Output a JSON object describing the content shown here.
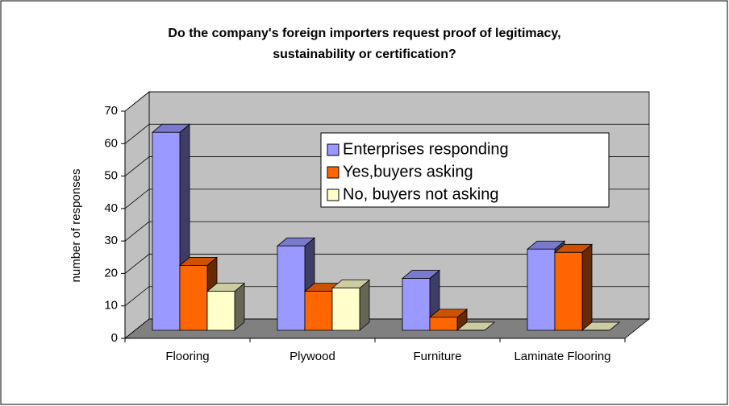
{
  "chart_data": {
    "type": "bar3d",
    "title": [
      "Do the company's foreign importers request proof of legitimacy,",
      "sustainability or certification?"
    ],
    "y_label": "number of responses",
    "categories": [
      "Flooring",
      "Plywood",
      "Furniture",
      "Laminate Flooring"
    ],
    "series": [
      {
        "name": "Enterprises responding",
        "color": "#9999ff",
        "values": [
          61,
          26,
          16,
          25
        ]
      },
      {
        "name": "Yes,buyers asking",
        "color": "#ff6600",
        "values": [
          20,
          12,
          4,
          24
        ]
      },
      {
        "name": "No, buyers not asking",
        "color": "#ffffcc",
        "values": [
          12,
          13,
          0,
          0
        ]
      }
    ],
    "ylim": [
      0,
      70
    ],
    "yticks": [
      0,
      10,
      20,
      30,
      40,
      50,
      60,
      70
    ],
    "grid": true
  }
}
